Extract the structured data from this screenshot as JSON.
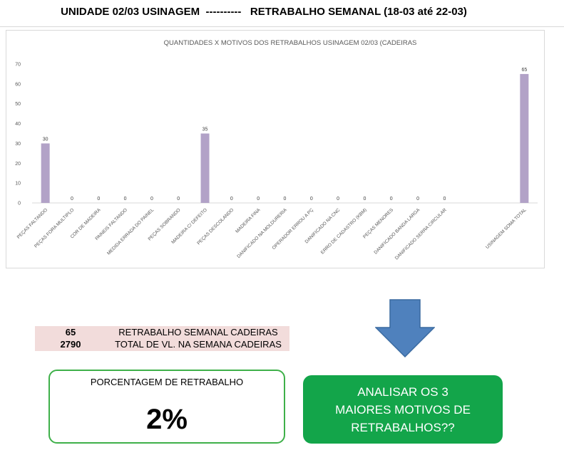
{
  "header": {
    "title": "UNIDADE 02/03 USINAGEM  ----------   RETRABALHO SEMANAL (18-03 até 22-03)"
  },
  "chart_data": {
    "type": "bar",
    "title": "QUANTIDADES X MOTIVOS DOS RETRABALHOS USINAGEM 02/03 (CADEIRAS",
    "xlabel": "",
    "ylabel": "",
    "ylim": [
      0,
      70
    ],
    "yticks": [
      0,
      10,
      20,
      30,
      40,
      50,
      60,
      70
    ],
    "grid": false,
    "bar_color": "#b2a2c7",
    "categories": [
      "PEÇAS FALTANDO",
      "PEÇAS FORA MULTIPLO",
      "COR DE MADEIRA",
      "PAINEIS FALTANDO",
      "MEDIDA ERRADA DO PAINEL",
      "PEÇAS SOBRANDO",
      "MADEIRA C/ DEFEITO",
      "PEÇAS DESCOLANDO",
      "MADEIRA FINA",
      "DANIFICADO NA MOLDURERIA",
      "OPERADOR ERROU A PÇ",
      "DANIFICADO NA CNC",
      "ERRO DE CADASTRO (KBM)",
      "PEÇAS MENORES",
      "DANIFICADO BANDA LARGA",
      "DANIFICADO SERRA CIRCULAR",
      "",
      "",
      "USINAGEM SOMA TOTAL"
    ],
    "values": [
      30,
      0,
      0,
      0,
      0,
      0,
      35,
      0,
      0,
      0,
      0,
      0,
      0,
      0,
      0,
      0,
      null,
      null,
      65
    ],
    "data_labels": [
      "30",
      "0",
      "0",
      "0",
      "0",
      "0",
      "35",
      "0",
      "0",
      "0",
      "0",
      "0",
      "0",
      "0",
      "0",
      "0",
      "",
      "",
      "65"
    ]
  },
  "summary": {
    "rows": [
      {
        "value": "65",
        "label": "RETRABALHO SEMANAL CADEIRAS"
      },
      {
        "value": "2790",
        "label": "TOTAL DE VL. NA SEMANA CADEIRAS"
      }
    ]
  },
  "percentage": {
    "title": "PORCENTAGEM DE RETRABALHO",
    "value": "2%"
  },
  "action": {
    "label": "ANALISAR OS 3 MAIORES MOTIVOS DE RETRABALHOS??",
    "color": "#13a54a"
  },
  "arrow": {
    "icon": "down-arrow-icon",
    "color": "#4f81bd"
  }
}
